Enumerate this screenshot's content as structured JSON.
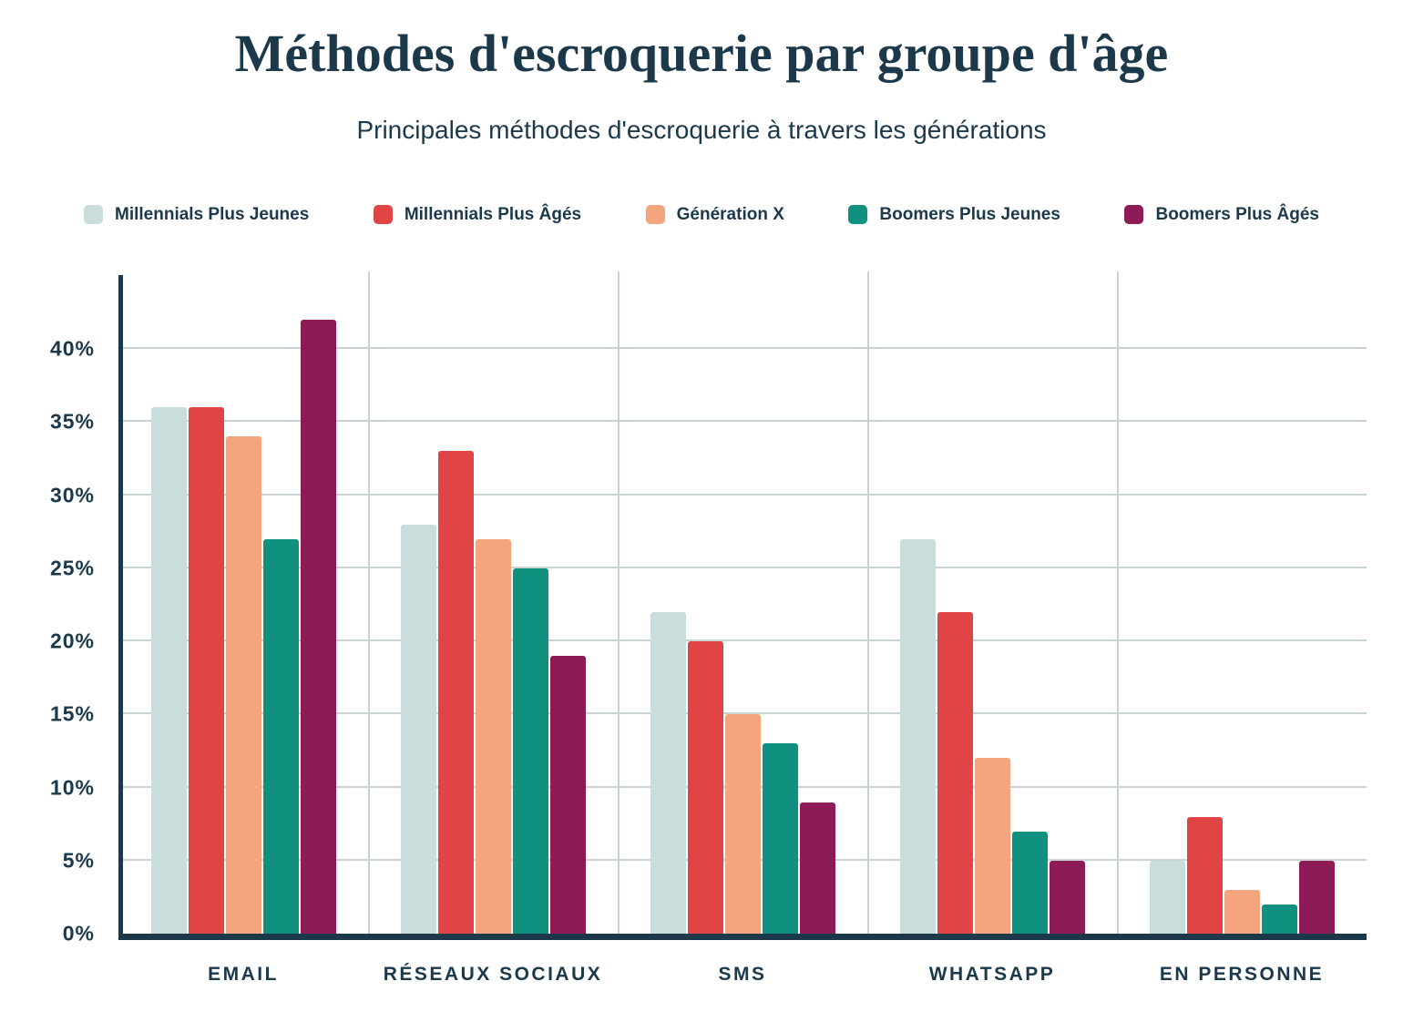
{
  "chart_data": {
    "type": "bar",
    "title": "Méthodes d'escroquerie par groupe d'âge",
    "subtitle": "Principales méthodes d'escroquerie à travers les générations",
    "categories": [
      "EMAIL",
      "RÉSEAUX SOCIAUX",
      "SMS",
      "WHATSAPP",
      "EN PERSONNE"
    ],
    "series": [
      {
        "name": "Millennials Plus Jeunes",
        "color": "#c9dddc",
        "values": [
          36,
          28,
          22,
          27,
          5
        ]
      },
      {
        "name": "Millennials Plus Âgés",
        "color": "#e04444",
        "values": [
          36,
          33,
          20,
          22,
          8
        ]
      },
      {
        "name": "Génération X",
        "color": "#f4a57d",
        "values": [
          34,
          27,
          15,
          12,
          3
        ]
      },
      {
        "name": "Boomers Plus Jeunes",
        "color": "#10907e",
        "values": [
          27,
          25,
          13,
          7,
          2
        ]
      },
      {
        "name": "Boomers Plus Âgés",
        "color": "#8d1b56",
        "values": [
          42,
          19,
          9,
          5,
          5
        ]
      }
    ],
    "ylim": [
      0,
      45.3
    ],
    "yticks": [
      0,
      5,
      10,
      15,
      20,
      25,
      30,
      35,
      40
    ],
    "ytick_labels": [
      "0%",
      "5%",
      "10%",
      "15%",
      "20%",
      "25%",
      "30%",
      "35%",
      "40%"
    ],
    "unit": "%",
    "legend_position": "top",
    "grid": "horizontal gridlines every 5%, vertical separators between category groups",
    "colors": {
      "text": "#1b394a",
      "axis": "#1b394a",
      "gridline": "#c9d3d6",
      "background": "#ffffff"
    }
  }
}
